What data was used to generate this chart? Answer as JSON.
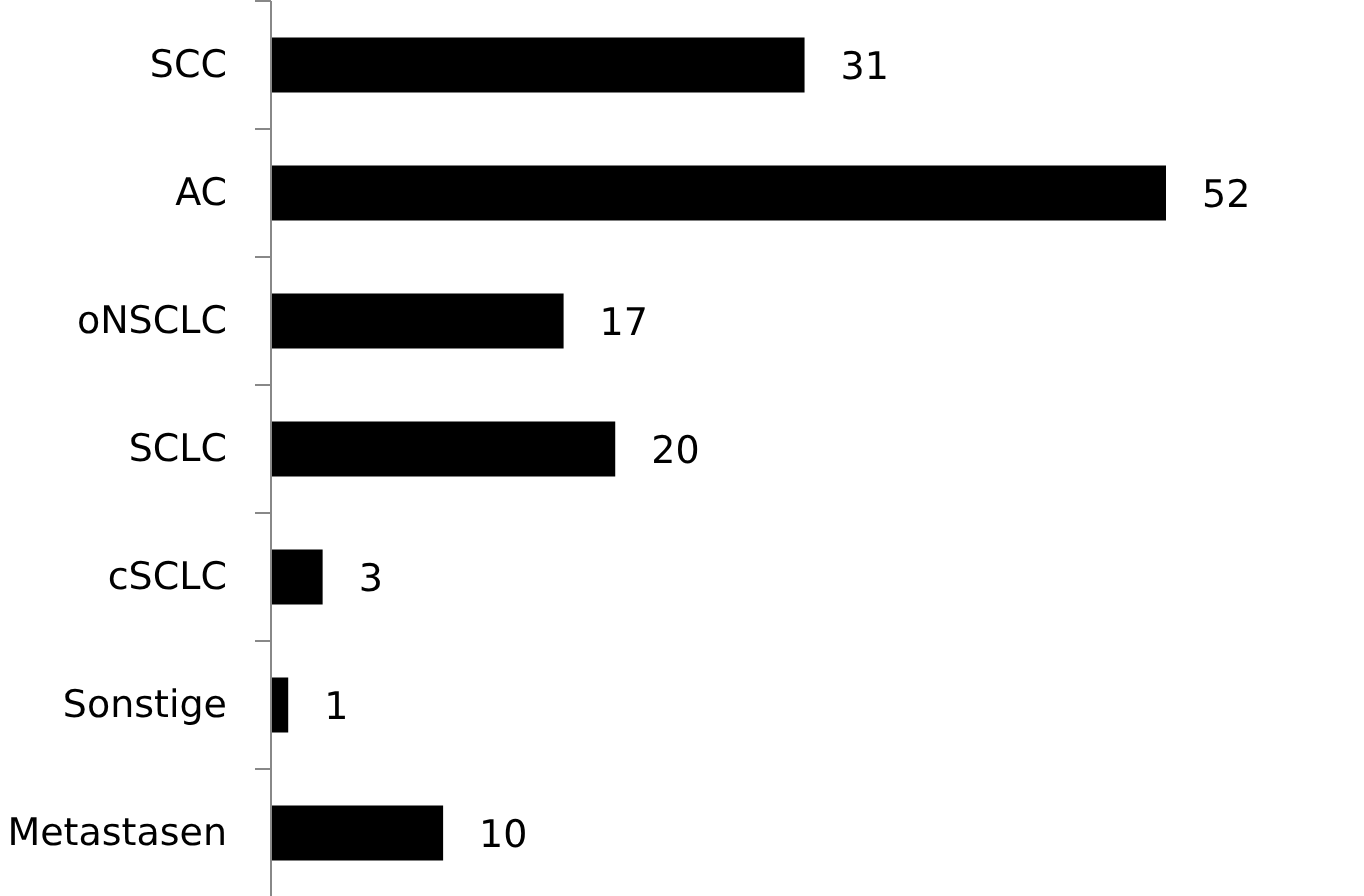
{
  "chart_data": {
    "type": "bar",
    "orientation": "horizontal",
    "categories": [
      "SCC",
      "AC",
      "oNSCLC",
      "SCLC",
      "cSCLC",
      "Sonstige",
      "Metastasen"
    ],
    "values": [
      31,
      52,
      17,
      20,
      3,
      1,
      10
    ],
    "color": "#000000",
    "data_labels": true
  }
}
